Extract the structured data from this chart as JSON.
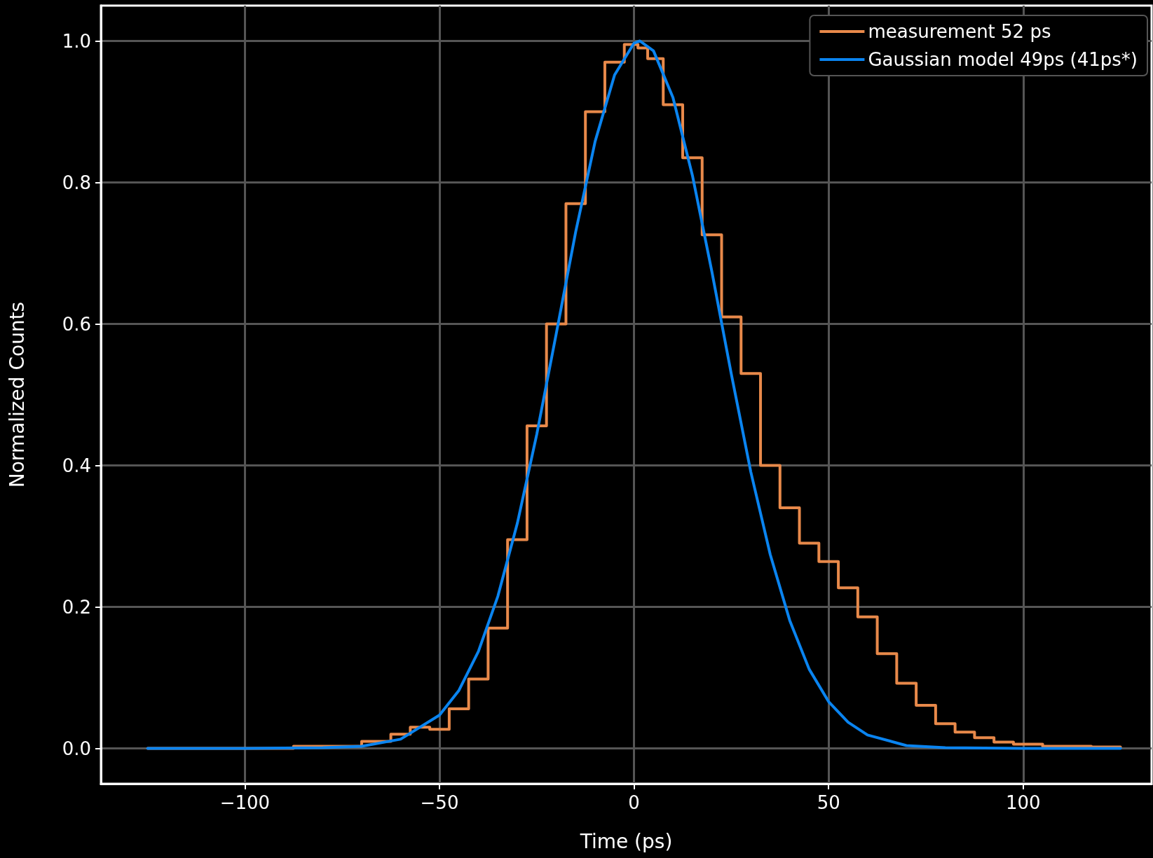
{
  "chart_data": {
    "type": "line",
    "xlabel": "Time (ps)",
    "ylabel": "Normalized Counts",
    "xlim": [
      -137,
      133
    ],
    "ylim": [
      -0.05,
      1.05
    ],
    "xticks": [
      {
        "value": -100,
        "label": "−100"
      },
      {
        "value": -50,
        "label": "−50"
      },
      0,
      50,
      100
    ],
    "yticks": [
      {
        "value": 0,
        "label": "0.0"
      },
      {
        "value": 0.2,
        "label": "0.2"
      },
      {
        "value": 0.4,
        "label": "0.4"
      },
      {
        "value": 0.6,
        "label": "0.6"
      },
      {
        "value": 0.8,
        "label": "0.8"
      },
      {
        "value": 1,
        "label": "1.0"
      }
    ],
    "grid": true,
    "legend": "top right",
    "marker": "none",
    "line_style": "solid",
    "series": [
      {
        "name": "measurement 52 ps",
        "type": "step",
        "color": "#e8894a",
        "x": [
          -125,
          -100,
          -75,
          -65,
          -60,
          -55,
          -50,
          -45,
          -40,
          -35,
          -30,
          -25,
          -20,
          -15,
          -10,
          -5,
          0,
          2,
          5,
          10,
          15,
          20,
          25,
          30,
          35,
          40,
          45,
          50,
          55,
          60,
          65,
          70,
          75,
          80,
          85,
          90,
          95,
          100,
          110,
          125
        ],
        "values": [
          0,
          0,
          0.003,
          0.01,
          0.02,
          0.03,
          0.027,
          0.056,
          0.098,
          0.17,
          0.295,
          0.456,
          0.6,
          0.77,
          0.9,
          0.97,
          0.995,
          0.99,
          0.975,
          0.91,
          0.835,
          0.726,
          0.61,
          0.53,
          0.4,
          0.34,
          0.29,
          0.264,
          0.227,
          0.186,
          0.134,
          0.092,
          0.061,
          0.035,
          0.023,
          0.015,
          0.009,
          0.006,
          0.003,
          0.002
        ]
      },
      {
        "name": "Gaussian model 49ps (41ps*)",
        "color": "#0a84f0",
        "x": [
          -125,
          -100,
          -80,
          -70,
          -60,
          -50,
          -45,
          -40,
          -35,
          -30,
          -25,
          -20,
          -15,
          -10,
          -5,
          0,
          1.5,
          5,
          10,
          15,
          20,
          25,
          30,
          35,
          40,
          45,
          50,
          55,
          60,
          70,
          80,
          100,
          125
        ],
        "values": [
          0,
          0,
          0.001,
          0.003,
          0.013,
          0.047,
          0.082,
          0.137,
          0.215,
          0.318,
          0.444,
          0.586,
          0.73,
          0.858,
          0.952,
          0.997,
          1,
          0.986,
          0.92,
          0.81,
          0.674,
          0.529,
          0.391,
          0.274,
          0.181,
          0.112,
          0.066,
          0.037,
          0.019,
          0.004,
          0.001,
          0,
          0
        ]
      }
    ]
  }
}
